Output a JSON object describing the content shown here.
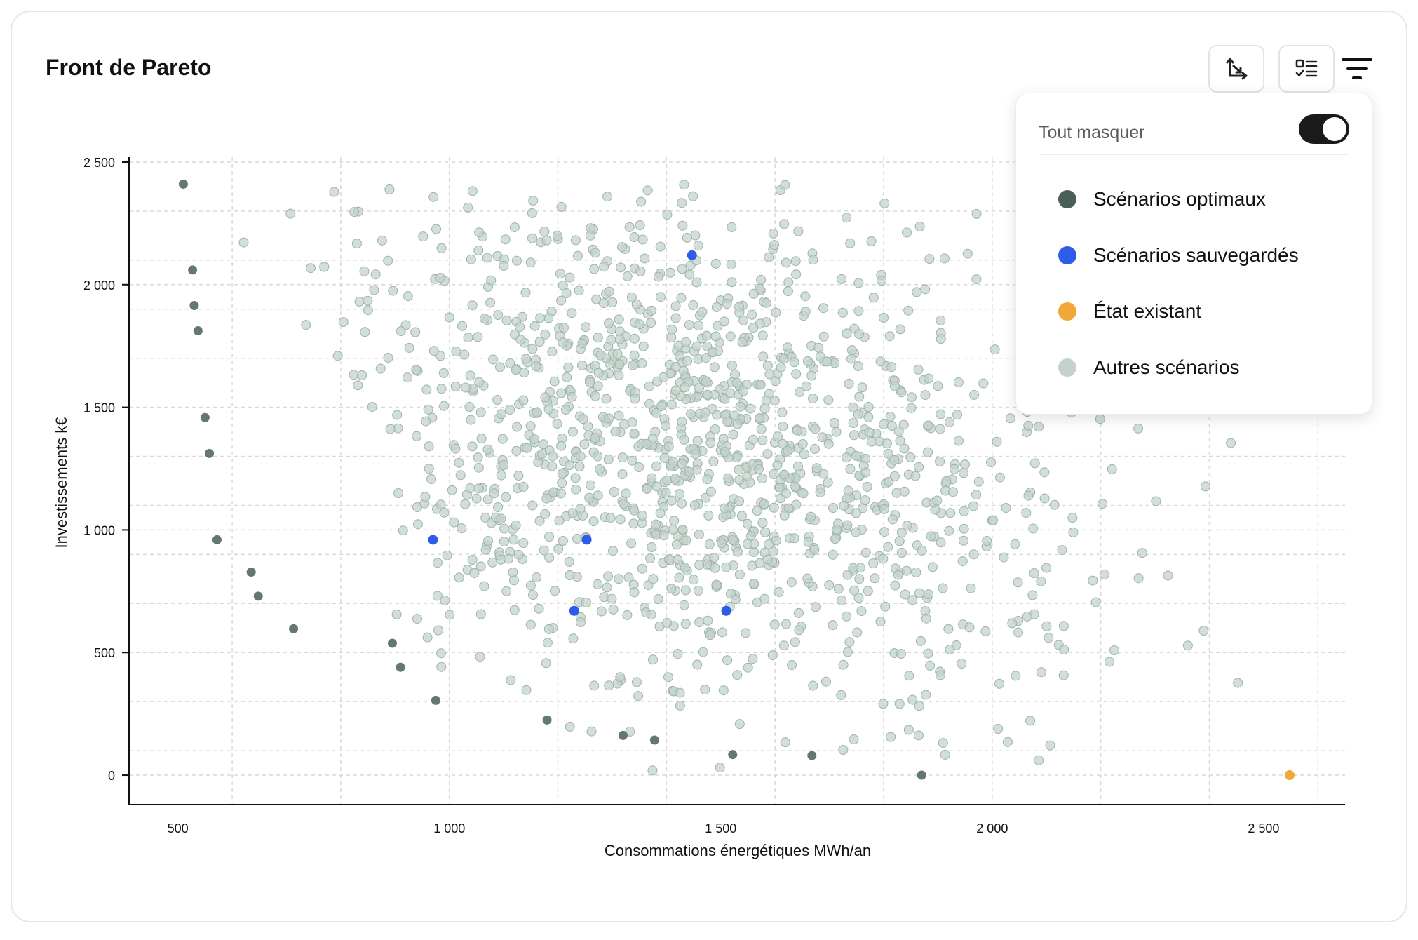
{
  "page": {
    "title": "Front de Pareto"
  },
  "toolbar": {
    "axes_icon": "axes-swap-icon",
    "checklist_icon": "checklist-icon",
    "filter_icon": "filter-icon"
  },
  "legend_popover": {
    "hide_all_label": "Tout masquer",
    "hide_all_on": true,
    "items": [
      {
        "label": "Scénarios optimaux",
        "color": "#4a5f58"
      },
      {
        "label": "Scénarios sauvegardés",
        "color": "#2f5bea"
      },
      {
        "label": "État existant",
        "color": "#f2a838"
      },
      {
        "label": "Autres scénarios",
        "color": "#c3d3cb"
      }
    ]
  },
  "chart_data": {
    "type": "scatter",
    "title": "Front de Pareto",
    "xlabel": "Consommations énergétiques MWh/an",
    "ylabel": "Investissements k€",
    "xlim": [
      410,
      2650
    ],
    "ylim": [
      -120,
      2520
    ],
    "x_ticks": [
      500,
      1000,
      1500,
      2000,
      2500
    ],
    "x_tick_labels": [
      "500",
      "1 000",
      "1 500",
      "2 000",
      "2 500"
    ],
    "y_ticks": [
      0,
      500,
      1000,
      1500,
      2000,
      2500
    ],
    "y_tick_labels": [
      "0",
      "500",
      "1 000",
      "1 500",
      "2 000",
      "2 500"
    ],
    "grid": true,
    "legend_placement": "top-right",
    "series": [
      {
        "name": "Scénarios optimaux",
        "color": "#4a5f58",
        "x": [
          510,
          527,
          530,
          537,
          550,
          558,
          572,
          635,
          648,
          713,
          895,
          910,
          975,
          1180,
          1320,
          1378,
          1522,
          1668,
          1870
        ],
        "y": [
          2410,
          2060,
          1915,
          1812,
          1458,
          1312,
          960,
          828,
          730,
          597,
          538,
          440,
          305,
          225,
          162,
          143,
          84,
          80,
          0
        ]
      },
      {
        "name": "Scénarios sauvegardés",
        "color": "#2f5bea",
        "x": [
          1447,
          970,
          1253,
          1230,
          1510
        ],
        "y": [
          2120,
          960,
          960,
          670,
          670
        ]
      },
      {
        "name": "État existant",
        "color": "#f2a838",
        "x": [
          2548
        ],
        "y": [
          0
        ]
      },
      {
        "name": "Autres scénarios",
        "color": "#c3d3cb",
        "count_estimate": 1400,
        "x_range": [
          560,
          2480
        ],
        "y_range": [
          0,
          2420
        ],
        "center": [
          1450,
          1300
        ]
      }
    ]
  }
}
